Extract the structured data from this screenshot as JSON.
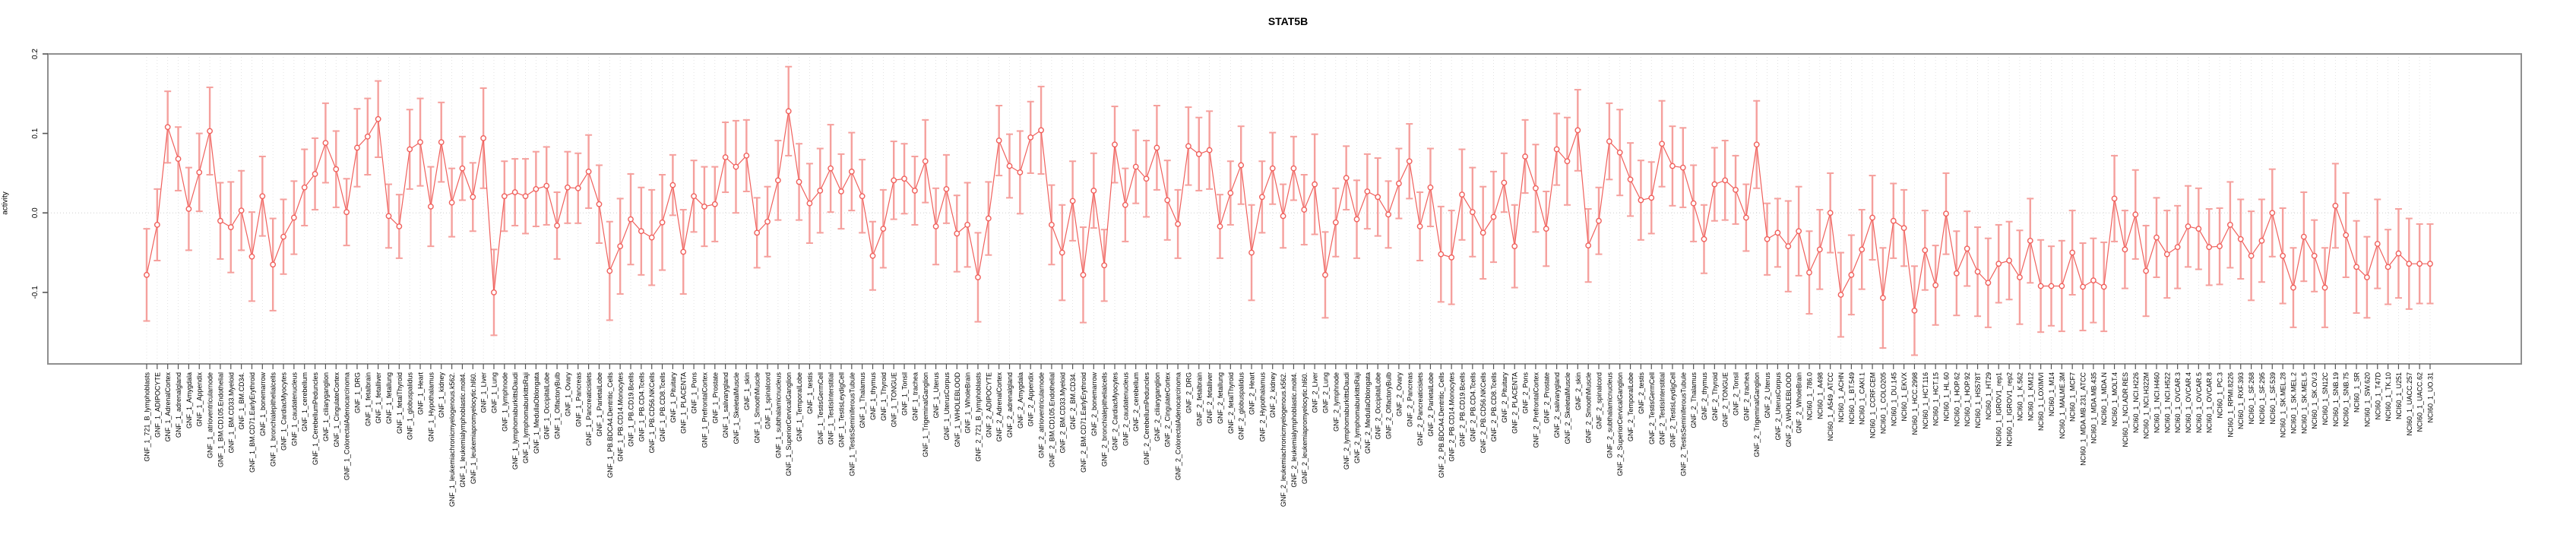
{
  "title": "STAT5B",
  "y_axis": {
    "label": "activity",
    "tick_labels": [
      "0.2",
      "0.1",
      "0.0",
      "-0.1"
    ]
  },
  "colors": {
    "point_stroke": "#f0605c",
    "point_fill": "#ffffff",
    "line": "#f0605c",
    "error_bar": "#f5a09d",
    "grid": "#dcdcdc",
    "zero_line": "#c8c8c8",
    "frame": "#8f8f8f",
    "tick": "#555555",
    "text": "#000000"
  },
  "chart_data": {
    "type": "scatter",
    "title": "STAT5B",
    "xlabel": "",
    "ylabel": "activity",
    "ylim": [
      -0.19,
      0.2
    ],
    "y_ticks": [
      0.2,
      0.1,
      0.0,
      -0.1
    ],
    "grid": "vertical-dotted-per-category",
    "zero_reference_line": true,
    "error_bars": true,
    "legend": "none",
    "categories": [
      "GNF_1_721_B_lymphoblasts",
      "GNF_1_ADIPOCYTE",
      "GNF_1_AdrenalCortex",
      "GNF_1_adrenalgland",
      "GNF_1_Amygdala",
      "GNF_1_Appendix",
      "GNF_1_atrioventricularnode",
      "GNF_1_BM.CD105.Endothelial",
      "GNF_1_BM.CD33.Myeloid",
      "GNF_1_BM.CD34.",
      "GNF_1_BM.CD71.EarlyErythroid",
      "GNF_1_bonemarrow",
      "GNF_1_bronchialepithelialcells",
      "GNF_1_CardiacMyocytes",
      "GNF_1_caudatenucleus",
      "GNF_1_cerebellum",
      "GNF_1_CerebellumPeduncles",
      "GNF_1_ciliaryganglion",
      "GNF_1_CingulateCortex",
      "GNF_1_ColorectalAdenocarcinoma",
      "GNF_1_DRG",
      "GNF_1_fetalbrain",
      "GNF_1_fetalliver",
      "GNF_1_fetallung",
      "GNF_1_fetalThyroid",
      "GNF_1_globuspalidus",
      "GNF_1_Heart",
      "GNF_1_Hypothalamus",
      "GNF_1_kidney",
      "GNF_1_leukemiachronicmyelogenous.k562.",
      "GNF_1_leukemialymphoblastic.molt4.",
      "GNF_1_leukemiapromyelocytic.hl60.",
      "GNF_1_Liver",
      "GNF_1_Lung",
      "GNF_1_lymphnode",
      "GNF_1_lymphomaburkittsDaudi",
      "GNF_1_lymphomaburkittsRaji",
      "GNF_1_MedullaOblongata",
      "GNF_1_OccipitalLobe",
      "GNF_1_OlfactoryBulb",
      "GNF_1_Ovary",
      "GNF_1_Pancreas",
      "GNF_1_Pancreaticislets",
      "GNF_1_ParietalLobe",
      "GNF_1_PB.BDCA4.Dentritic_Cells",
      "GNF_1_PB.CD14.Monocytes",
      "GNF_1_PB.CD19.Bcells",
      "GNF_1_PB.CD4.Tcells",
      "GNF_1_PB.CD56.NKCells",
      "GNF_1_PB.CD8.Tcells",
      "GNF_1_Pituitary",
      "GNF_1_PLACENTA",
      "GNF_1_Pons",
      "GNF_1_PrefrontalCortex",
      "GNF_1_Prostate",
      "GNF_1_salivarygland",
      "GNF_1_SkeletalMuscle",
      "GNF_1_skin",
      "GNF_1_SmoothMuscle",
      "GNF_1_spinalcord",
      "GNF_1_subthalamicnucleus",
      "GNF_1_SuperiorCervicalGanglion",
      "GNF_1_TemporalLobe",
      "GNF_1_testis",
      "GNF_1_TestisGermCell",
      "GNF_1_TestisInterstitial",
      "GNF_1_TestisLeydigCell",
      "GNF_1_TestisSeminiferousTubule",
      "GNF_1_Thalamus",
      "GNF_1_thymus",
      "GNF_1_Thyroid",
      "GNF_1_TONGUE",
      "GNF_1_Tonsil",
      "GNF_1_trachea",
      "GNF_1_TrigeminalGanglion",
      "GNF_1_Uterus",
      "GNF_1_UterusCorpus",
      "GNF_1_WHOLEBLOOD",
      "GNF_1_WholeBrain",
      "GNF_2_721_B_lymphoblasts",
      "GNF_2_ADIPOCYTE",
      "GNF_2_AdrenalCortex",
      "GNF_2_adrenalgland",
      "GNF_2_Amygdala",
      "GNF_2_Appendix",
      "GNF_2_atrioventricularnode",
      "GNF_2_BM.CD105.Endothelial",
      "GNF_2_BM.CD33.Myeloid",
      "GNF_2_BM.CD34.",
      "GNF_2_BM.CD71.EarlyErythroid",
      "GNF_2_bonemarrow",
      "GNF_2_bronchialepithelialcells",
      "GNF_2_CardiacMyocytes",
      "GNF_2_caudatenucleus",
      "GNF_2_cerebellum",
      "GNF_2_CerebellumPeduncles",
      "GNF_2_ciliaryganglion",
      "GNF_2_CingulateCortex",
      "GNF_2_ColorectalAdenocarcinoma",
      "GNF_2_DRG",
      "GNF_2_fetalbrain",
      "GNF_2_fetalliver",
      "GNF_2_fetallung",
      "GNF_2_fetalThyroid",
      "GNF_2_globuspalidus",
      "GNF_2_Heart",
      "GNF_2_Hypothalamus",
      "GNF_2_kidney",
      "GNF_2_leukemiachronicmyelogenous.k562.",
      "GNF_2_leukemialymphoblastic.molt4.",
      "GNF_2_leukemiapromyelocytic.hl60.",
      "GNF_2_Liver",
      "GNF_2_Lung",
      "GNF_2_lymphnode",
      "GNF_2_lymphomaburkittsDaudi",
      "GNF_2_lymphomaburkittsRaji",
      "GNF_2_MedullaOblongata",
      "GNF_2_OccipitalLobe",
      "GNF_2_OlfactoryBulb",
      "GNF_2_Ovary",
      "GNF_2_Pancreas",
      "GNF_2_Pancreaticislets",
      "GNF_2_ParietalLobe",
      "GNF_2_PB.BDCA4.Dentritic_Cells",
      "GNF_2_PB.CD14.Monocytes",
      "GNF_2_PB.CD19.Bcells",
      "GNF_2_PB.CD4.Tcells",
      "GNF_2_PB.CD56.NKCells",
      "GNF_2_PB.CD8.Tcells",
      "GNF_2_Pituitary",
      "GNF_2_PLACENTA",
      "GNF_2_Pons",
      "GNF_2_PrefrontalCortex",
      "GNF_2_Prostate",
      "GNF_2_salivarygland",
      "GNF_2_SkeletalMuscle",
      "GNF_2_skin",
      "GNF_2_SmoothMuscle",
      "GNF_2_spinalcord",
      "GNF_2_subthalamicnucleus",
      "GNF_2_SuperiorCervicalGanglion",
      "GNF_2_TemporalLobe",
      "GNF_2_testis",
      "GNF_2_TestisGermCell",
      "GNF_2_TestisInterstitial",
      "GNF_2_TestisLeydigCell",
      "GNF_2_TestisSeminiferousTubule",
      "GNF_2_Thalamus",
      "GNF_2_thymus",
      "GNF_2_Thyroid",
      "GNF_2_TONGUE",
      "GNF_2_Tonsil",
      "GNF_2_trachea",
      "GNF_2_TrigeminalGanglion",
      "GNF_2_Uterus",
      "GNF_2_UterusCorpus",
      "GNF_2_WHOLEBLOOD",
      "GNF_2_WholeBrain",
      "NCI60_1_786.0",
      "NCI60_1_A498",
      "NCI60_1_A549_ATCC",
      "NCI60_1_ACHN",
      "NCI60_1_BT.549",
      "NCI60_1_CAKI.1",
      "NCI60_1_CCRF.CEM",
      "NCI60_1_COLO205",
      "NCI60_1_DU.145",
      "NCI60_1_EKVX",
      "NCI60_1_HCC.2998",
      "NCI60_1_HCT.116",
      "NCI60_1_HCT.15",
      "NCI60_1_HL.60",
      "NCI60_1_HOP.62",
      "NCI60_1_HOP.92",
      "NCI60_1_HS578T",
      "NCI60_1_HT29",
      "NCI60_1_IGROV1_rep1",
      "NCI60_1_IGROV1_rep2",
      "NCI60_1_K.562",
      "NCI60_1_KM12",
      "NCI60_1_LOXIMVI",
      "NCI60_1_M14",
      "NCI60_1_MALME.3M",
      "NCI60_1_MCF7",
      "NCI60_1_MDA.MB.231_ATCC",
      "NCI60_1_MDA.MB.435",
      "NCI60_1_MDA.N",
      "NCI60_1_MOLT.4",
      "NCI60_1_NCI.ADR.RES",
      "NCI60_1_NCI.H226",
      "NCI60_1_NCI.H322M",
      "NCI60_1_NCI.H460",
      "NCI60_1_NCI.H522",
      "NCI60_1_OVCAR.3",
      "NCI60_1_OVCAR.4",
      "NCI60_1_OVCAR.5",
      "NCI60_1_OVCAR.8",
      "NCI60_1_PC.3",
      "NCI60_1_RPMI.8226",
      "NCI60_1_RXF.393",
      "NCI60_1_SF.268",
      "NCI60_1_SF.295",
      "NCI60_1_SF.539",
      "NCI60_1_SK.MEL.28",
      "NCI60_1_SK.MEL.2",
      "NCI60_1_SK.MEL.5",
      "NCI60_1_SK.OV.3",
      "NCI60_1_SN12C",
      "NCI60_1_SNB.19",
      "NCI60_1_SNB.75",
      "NCI60_1_SR",
      "NCI60_1_SW.620",
      "NCI60_1_T47D",
      "NCI60_1_TK.10",
      "NCI60_1_U251",
      "NCI60_1_UACC.257",
      "NCI60_1_UACC.62",
      "NCI60_1_UO.31"
    ],
    "values": [
      -0.078,
      -0.015,
      0.108,
      0.068,
      0.005,
      0.051,
      0.103,
      -0.01,
      -0.018,
      0.003,
      -0.055,
      0.021,
      -0.065,
      -0.03,
      -0.006,
      0.032,
      0.049,
      0.088,
      0.055,
      0.001,
      0.082,
      0.096,
      0.118,
      -0.004,
      -0.017,
      0.08,
      0.089,
      0.008,
      0.089,
      0.013,
      0.056,
      0.02,
      0.094,
      -0.1,
      0.021,
      0.026,
      0.021,
      0.03,
      0.034,
      -0.016,
      0.032,
      0.031,
      0.052,
      0.011,
      -0.073,
      -0.042,
      -0.008,
      -0.023,
      -0.031,
      -0.012,
      0.035,
      -0.049,
      0.021,
      0.008,
      0.011,
      0.07,
      0.058,
      0.072,
      -0.025,
      -0.011,
      0.041,
      0.128,
      0.039,
      0.012,
      0.028,
      0.056,
      0.027,
      0.052,
      0.021,
      -0.054,
      -0.02,
      0.041,
      0.043,
      0.028,
      0.065,
      -0.017,
      0.03,
      -0.026,
      -0.015,
      -0.081,
      -0.007,
      0.091,
      0.059,
      0.051,
      0.095,
      0.104,
      -0.015,
      -0.05,
      0.015,
      -0.078,
      0.028,
      -0.066,
      0.086,
      0.01,
      0.058,
      0.043,
      0.082,
      0.016,
      -0.014,
      0.084,
      0.074,
      0.079,
      -0.017,
      0.025,
      0.06,
      -0.05,
      0.02,
      0.056,
      -0.004,
      0.056,
      0.004,
      0.036,
      -0.078,
      -0.012,
      0.044,
      -0.008,
      0.027,
      0.02,
      -0.002,
      0.037,
      0.065,
      -0.017,
      0.032,
      -0.052,
      -0.056,
      0.023,
      0.001,
      -0.025,
      -0.005,
      0.038,
      -0.042,
      0.071,
      0.031,
      -0.02,
      0.08,
      0.065,
      0.104,
      -0.041,
      -0.01,
      0.09,
      0.076,
      0.042,
      0.016,
      0.019,
      0.087,
      0.059,
      0.057,
      0.012,
      -0.033,
      0.036,
      0.041,
      0.029,
      -0.006,
      0.086,
      -0.033,
      -0.025,
      -0.042,
      -0.023,
      -0.075,
      -0.046,
      0.0,
      -0.103,
      -0.078,
      -0.046,
      -0.006,
      -0.107,
      -0.01,
      -0.019,
      -0.123,
      -0.047,
      -0.091,
      -0.001,
      -0.076,
      -0.045,
      -0.074,
      -0.088,
      -0.064,
      -0.06,
      -0.081,
      -0.035,
      -0.092,
      -0.092,
      -0.092,
      -0.05,
      -0.093,
      -0.085,
      -0.093,
      0.018,
      -0.046,
      -0.002,
      -0.073,
      -0.031,
      -0.052,
      -0.043,
      -0.017,
      -0.02,
      -0.043,
      -0.042,
      -0.015,
      -0.033,
      -0.054,
      -0.035,
      0.0,
      -0.054,
      -0.094,
      -0.03,
      -0.054,
      -0.094,
      0.009,
      -0.028,
      -0.068,
      -0.081,
      -0.039,
      -0.068,
      -0.051,
      -0.064,
      -0.064,
      -0.064
    ],
    "errors": [
      0.058,
      0.045,
      0.045,
      0.04,
      0.052,
      0.049,
      0.055,
      0.048,
      0.057,
      0.05,
      0.056,
      0.05,
      0.058,
      0.047,
      0.046,
      0.048,
      0.045,
      0.05,
      0.048,
      0.042,
      0.049,
      0.048,
      0.048,
      0.04,
      0.04,
      0.05,
      0.055,
      0.05,
      0.05,
      0.043,
      0.04,
      0.043,
      0.063,
      0.054,
      0.044,
      0.042,
      0.047,
      0.047,
      0.049,
      0.042,
      0.045,
      0.044,
      0.046,
      0.049,
      0.062,
      0.06,
      0.057,
      0.055,
      0.06,
      0.06,
      0.038,
      0.053,
      0.045,
      0.05,
      0.047,
      0.044,
      0.058,
      0.045,
      0.044,
      0.044,
      0.05,
      0.056,
      0.048,
      0.05,
      0.053,
      0.055,
      0.047,
      0.049,
      0.046,
      0.043,
      0.049,
      0.049,
      0.044,
      0.043,
      0.052,
      0.048,
      0.043,
      0.048,
      0.053,
      0.056,
      0.046,
      0.044,
      0.04,
      0.052,
      0.045,
      0.055,
      0.05,
      0.06,
      0.05,
      0.06,
      0.047,
      0.045,
      0.048,
      0.046,
      0.046,
      0.048,
      0.053,
      0.05,
      0.043,
      0.049,
      0.046,
      0.049,
      0.04,
      0.04,
      0.049,
      0.06,
      0.045,
      0.045,
      0.04,
      0.04,
      0.044,
      0.063,
      0.054,
      0.043,
      0.04,
      0.049,
      0.047,
      0.049,
      0.042,
      0.044,
      0.047,
      0.043,
      0.049,
      0.06,
      0.059,
      0.057,
      0.056,
      0.058,
      0.057,
      0.037,
      0.052,
      0.046,
      0.055,
      0.047,
      0.045,
      0.055,
      0.051,
      0.046,
      0.042,
      0.048,
      0.054,
      0.046,
      0.05,
      0.045,
      0.054,
      0.05,
      0.05,
      0.048,
      0.043,
      0.046,
      0.05,
      0.043,
      0.042,
      0.055,
      0.045,
      0.043,
      0.057,
      0.056,
      0.052,
      0.05,
      0.05,
      0.053,
      0.05,
      0.05,
      0.053,
      0.063,
      0.047,
      0.048,
      0.056,
      0.05,
      0.05,
      0.051,
      0.053,
      0.047,
      0.056,
      0.056,
      0.049,
      0.049,
      0.059,
      0.053,
      0.058,
      0.05,
      0.057,
      0.053,
      0.055,
      0.053,
      0.056,
      0.054,
      0.049,
      0.056,
      0.057,
      0.05,
      0.055,
      0.052,
      0.051,
      0.051,
      0.048,
      0.048,
      0.054,
      0.05,
      0.056,
      0.052,
      0.055,
      0.06,
      0.05,
      0.056,
      0.045,
      0.05,
      0.053,
      0.053,
      0.058,
      0.051,
      0.056,
      0.047,
      0.056,
      0.057,
      0.05,
      0.05
    ]
  }
}
